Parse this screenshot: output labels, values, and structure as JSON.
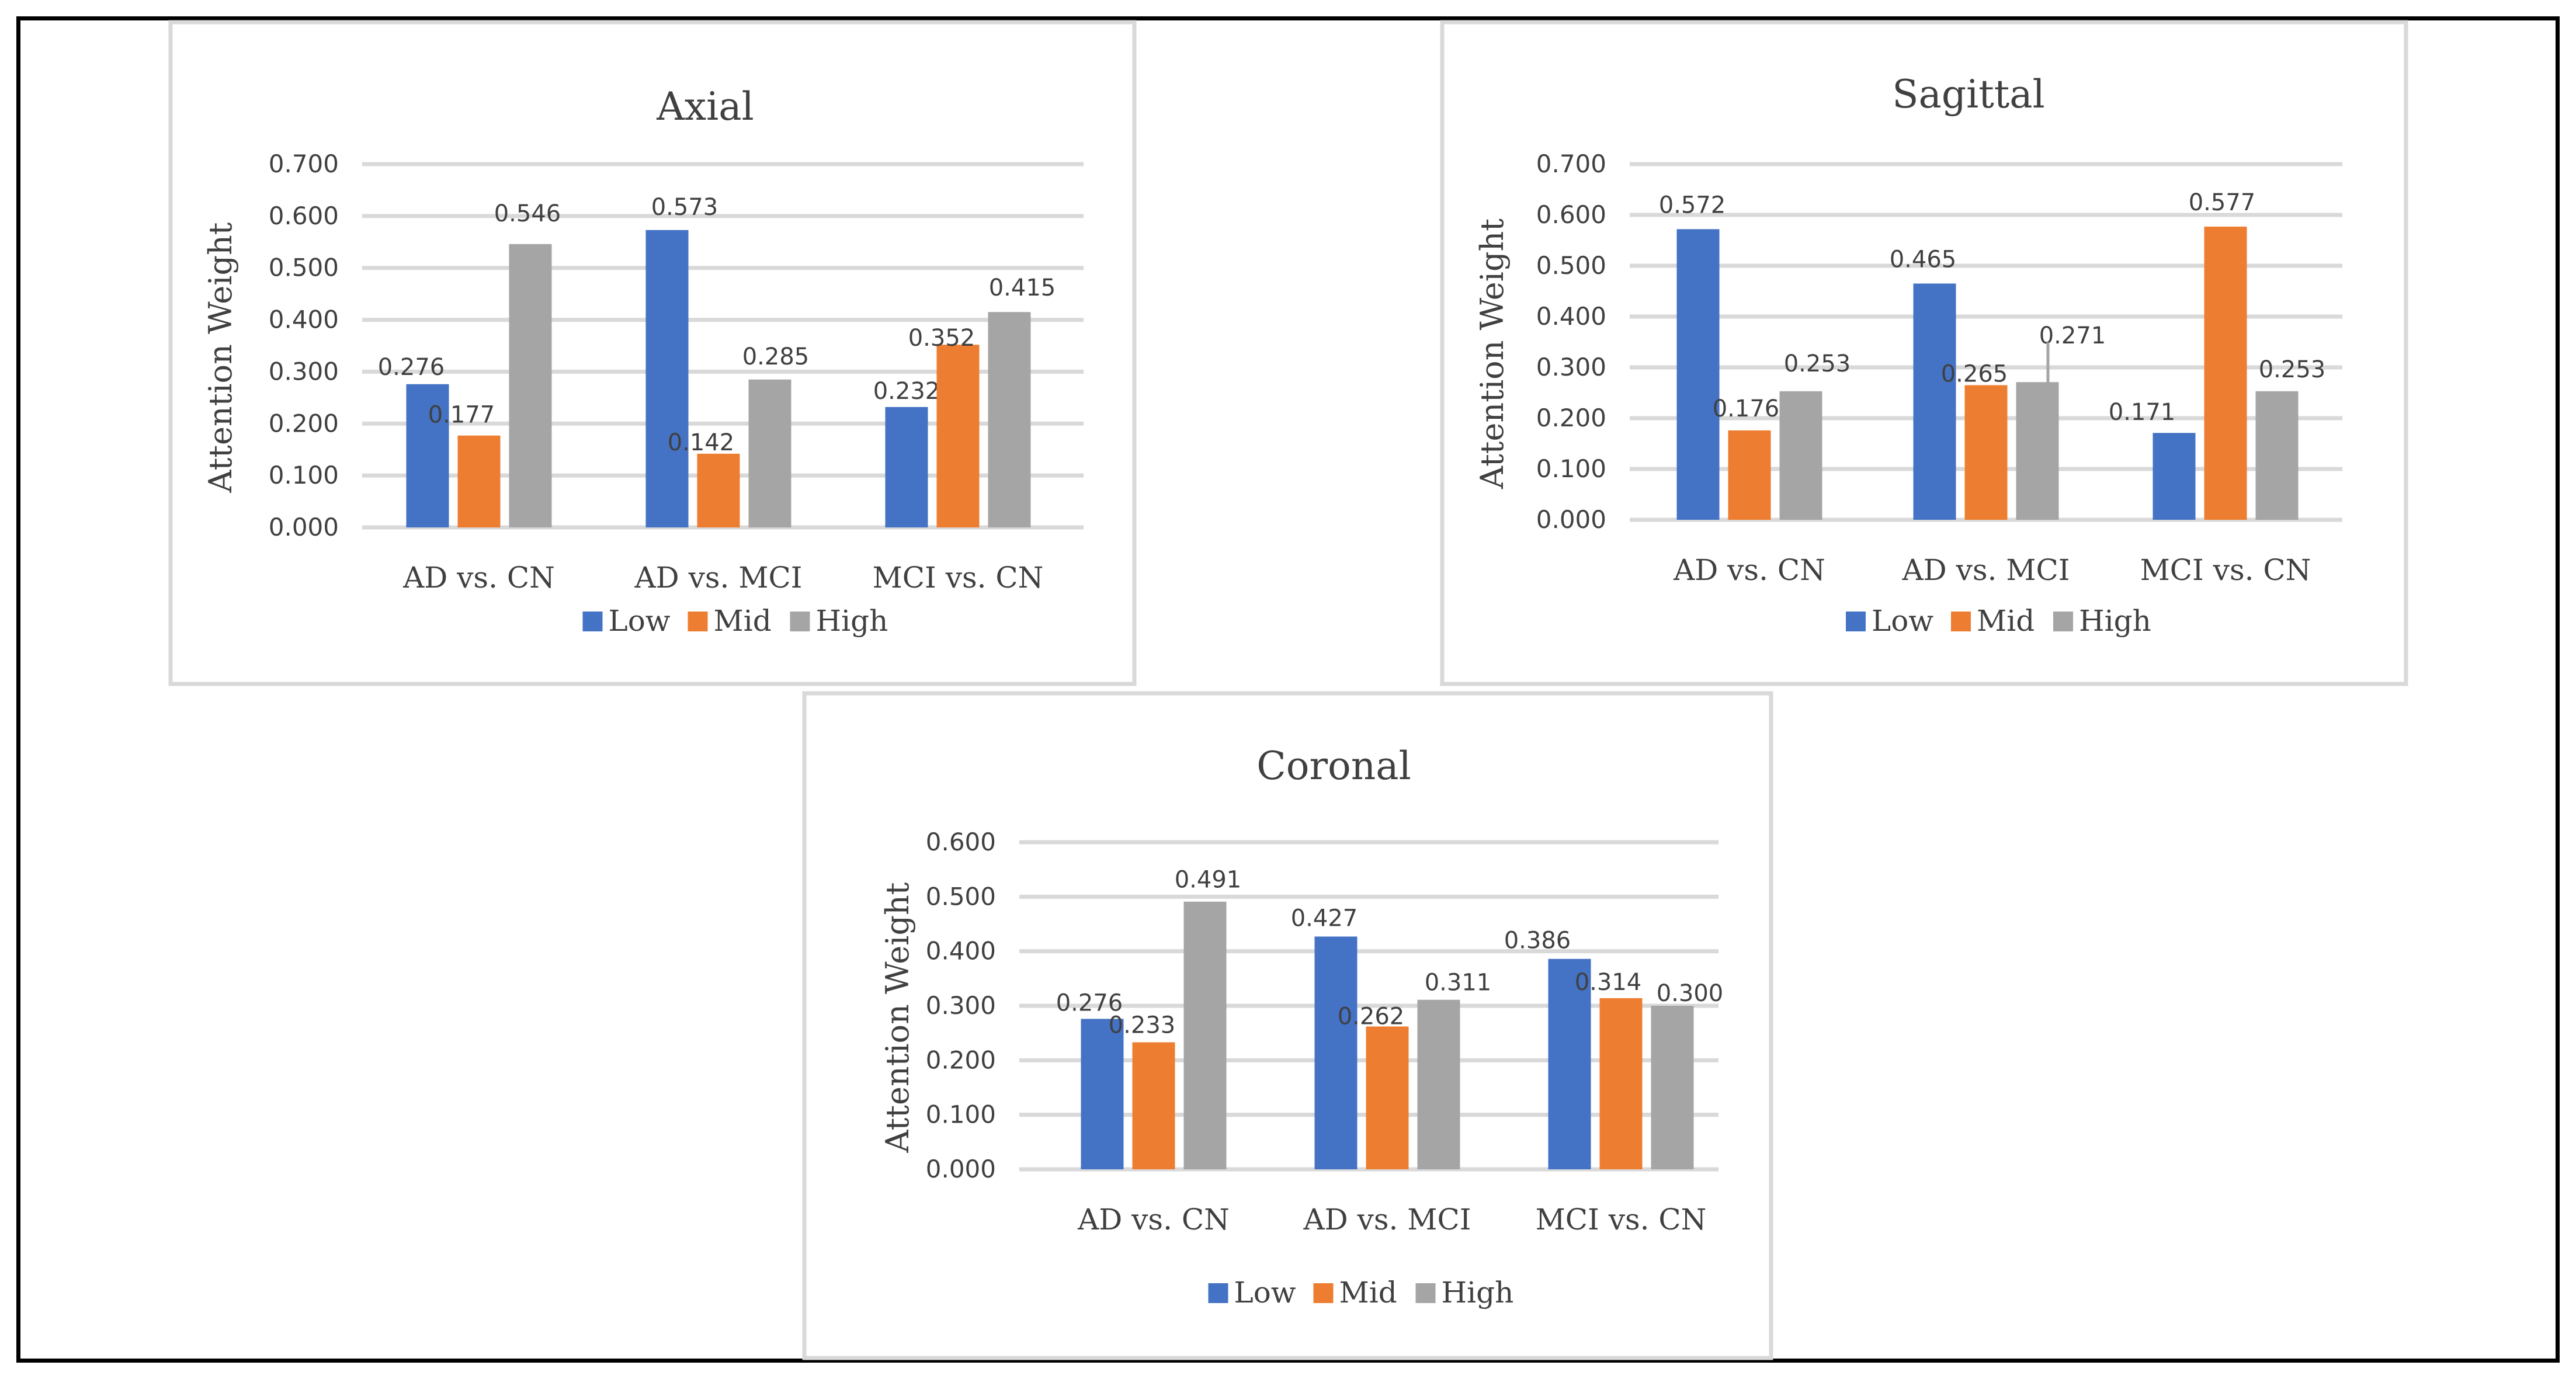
{
  "colors": {
    "low": "#4472C4",
    "mid": "#ED7D31",
    "high": "#A5A5A5",
    "grid": "#D9D9D9",
    "panel_border": "#D9D9D9",
    "text": "#404040",
    "frame": "#000000"
  },
  "chart_data": [
    {
      "type": "bar",
      "title": "Axial",
      "ylabel": "Attention Weight",
      "xlabel": "",
      "categories": [
        "AD vs. CN",
        "AD vs. MCI",
        "MCI vs. CN"
      ],
      "series": [
        {
          "name": "Low",
          "values": [
            0.276,
            0.573,
            0.232
          ]
        },
        {
          "name": "Mid",
          "values": [
            0.177,
            0.142,
            0.352
          ]
        },
        {
          "name": "High",
          "values": [
            0.546,
            0.285,
            0.415
          ]
        }
      ],
      "data_labels": [
        [
          "0.276",
          "0.573",
          "0.232"
        ],
        [
          "0.177",
          "0.142",
          "0.352"
        ],
        [
          "0.546",
          "0.285",
          "0.415"
        ]
      ],
      "ylim": [
        0,
        0.7
      ],
      "yticks": [
        0,
        0.1,
        0.2,
        0.3,
        0.4,
        0.5,
        0.6,
        0.7
      ],
      "ytick_labels": [
        "0.000",
        "0.100",
        "0.200",
        "0.300",
        "0.400",
        "0.500",
        "0.600",
        "0.700"
      ],
      "legend": "bottom",
      "grid": true
    },
    {
      "type": "bar",
      "title": "Sagittal",
      "ylabel": "Attention Weight",
      "xlabel": "",
      "categories": [
        "AD vs. CN",
        "AD vs. MCI",
        "MCI vs. CN"
      ],
      "series": [
        {
          "name": "Low",
          "values": [
            0.572,
            0.465,
            0.171
          ]
        },
        {
          "name": "Mid",
          "values": [
            0.176,
            0.265,
            0.577
          ]
        },
        {
          "name": "High",
          "values": [
            0.253,
            0.271,
            0.253
          ]
        }
      ],
      "data_labels": [
        [
          "0.572",
          "0.465",
          "0.171"
        ],
        [
          "0.176",
          "0.265",
          "0.577"
        ],
        [
          "0.253",
          "0.271",
          "0.253"
        ]
      ],
      "ylim": [
        0,
        0.7
      ],
      "yticks": [
        0,
        0.1,
        0.2,
        0.3,
        0.4,
        0.5,
        0.6,
        0.7
      ],
      "ytick_labels": [
        "0.000",
        "0.100",
        "0.200",
        "0.300",
        "0.400",
        "0.500",
        "0.600",
        "0.700"
      ],
      "legend": "bottom",
      "grid": true,
      "annotations": [
        {
          "type": "leader-line",
          "category": "AD vs. MCI",
          "series": "High"
        }
      ]
    },
    {
      "type": "bar",
      "title": "Coronal",
      "ylabel": "Attention Weight",
      "xlabel": "",
      "categories": [
        "AD vs. CN",
        "AD vs. MCI",
        "MCI vs. CN"
      ],
      "series": [
        {
          "name": "Low",
          "values": [
            0.276,
            0.427,
            0.386
          ]
        },
        {
          "name": "Mid",
          "values": [
            0.233,
            0.262,
            0.314
          ]
        },
        {
          "name": "High",
          "values": [
            0.491,
            0.311,
            0.3
          ]
        }
      ],
      "data_labels": [
        [
          "0.276",
          "0.427",
          "0.386"
        ],
        [
          "0.233",
          "0.262",
          "0.314"
        ],
        [
          "0.491",
          "0.311",
          "0.300"
        ]
      ],
      "ylim": [
        0,
        0.6
      ],
      "yticks": [
        0,
        0.1,
        0.2,
        0.3,
        0.4,
        0.5,
        0.6
      ],
      "ytick_labels": [
        "0.000",
        "0.100",
        "0.200",
        "0.300",
        "0.400",
        "0.500",
        "0.600"
      ],
      "legend": "bottom",
      "grid": true
    }
  ]
}
